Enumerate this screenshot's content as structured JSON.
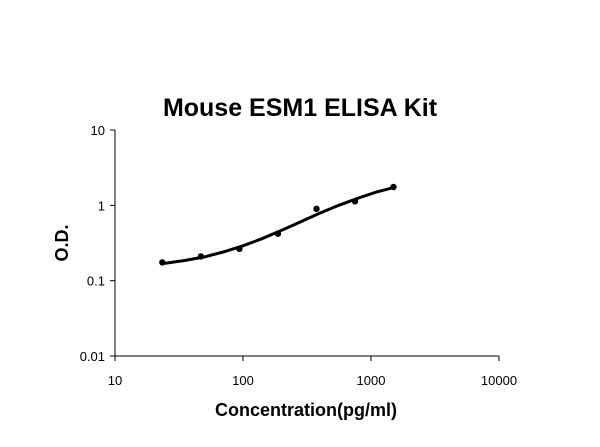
{
  "chart_data": {
    "type": "scatter",
    "title": "Mouse ESM1 ELISA Kit",
    "xlabel": "Concentration(pg/ml)",
    "ylabel": "O.D.",
    "xscale": "log",
    "yscale": "log",
    "xlim": [
      10,
      10000
    ],
    "ylim": [
      0.01,
      10
    ],
    "xticks": [
      "10",
      "100",
      "1000",
      "10000"
    ],
    "yticks": [
      "10",
      "1",
      "0.1",
      "0.01"
    ],
    "grid": false,
    "legend": "none",
    "series": [
      {
        "points": [
          {
            "x": 23.4,
            "y": 0.175
          },
          {
            "x": 46.9,
            "y": 0.21
          },
          {
            "x": 93.8,
            "y": 0.265
          },
          {
            "x": 187.5,
            "y": 0.42
          },
          {
            "x": 375,
            "y": 0.9
          },
          {
            "x": 750,
            "y": 1.13
          },
          {
            "x": 1500,
            "y": 1.75
          }
        ],
        "fit": [
          {
            "x": 23.4,
            "y": 0.168
          },
          {
            "x": 35,
            "y": 0.185
          },
          {
            "x": 50,
            "y": 0.207
          },
          {
            "x": 70,
            "y": 0.24
          },
          {
            "x": 100,
            "y": 0.29
          },
          {
            "x": 140,
            "y": 0.36
          },
          {
            "x": 200,
            "y": 0.465
          },
          {
            "x": 280,
            "y": 0.6
          },
          {
            "x": 400,
            "y": 0.79
          },
          {
            "x": 560,
            "y": 1.0
          },
          {
            "x": 800,
            "y": 1.25
          },
          {
            "x": 1100,
            "y": 1.5
          },
          {
            "x": 1500,
            "y": 1.72
          }
        ]
      }
    ]
  }
}
